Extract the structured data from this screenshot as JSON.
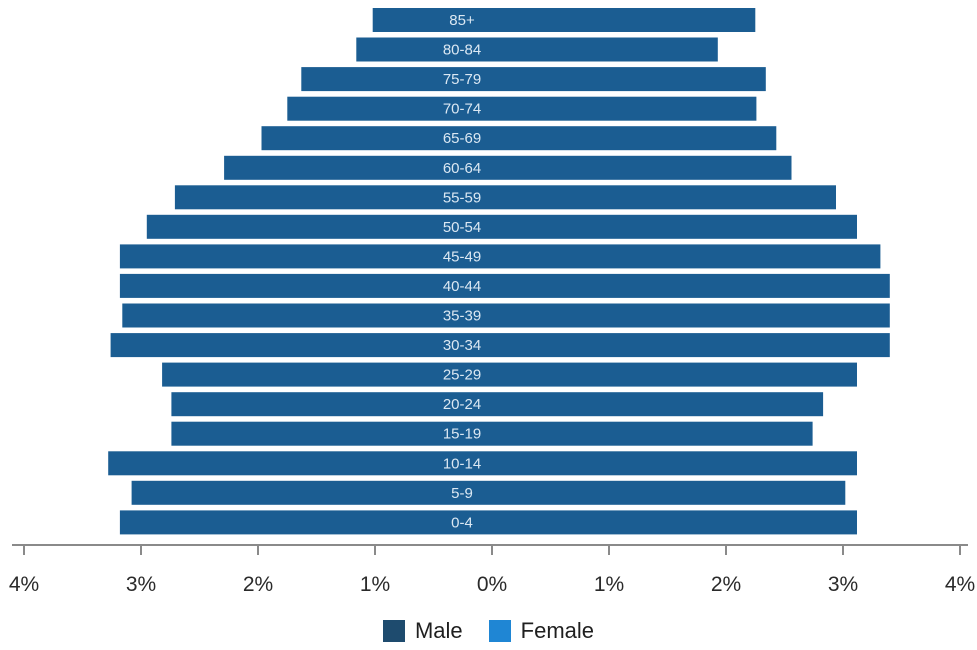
{
  "chart_data": {
    "type": "bar",
    "title": "",
    "xlabel": "",
    "ylabel": "",
    "xlim": [
      -4,
      4
    ],
    "x_ticks": [
      {
        "value": -4,
        "label": "4%"
      },
      {
        "value": -3,
        "label": "3%"
      },
      {
        "value": -2,
        "label": "2%"
      },
      {
        "value": -1,
        "label": "1%"
      },
      {
        "value": 0,
        "label": "0%"
      },
      {
        "value": 1,
        "label": "1%"
      },
      {
        "value": 2,
        "label": "2%"
      },
      {
        "value": 3,
        "label": "3%"
      },
      {
        "value": 4,
        "label": "4%"
      }
    ],
    "categories": [
      "85+",
      "80-84",
      "75-79",
      "70-74",
      "65-69",
      "60-64",
      "55-59",
      "50-54",
      "45-49",
      "40-44",
      "35-39",
      "30-34",
      "25-29",
      "20-24",
      "15-19",
      "10-14",
      "5-9",
      "0-4"
    ],
    "series": [
      {
        "name": "Male",
        "color": "#1b5d92",
        "values": [
          1.02,
          1.16,
          1.63,
          1.75,
          1.97,
          2.29,
          2.71,
          2.95,
          3.18,
          3.18,
          3.16,
          3.26,
          2.82,
          2.74,
          2.74,
          3.28,
          3.08,
          3.18
        ]
      },
      {
        "name": "Female",
        "color": "#1b5d92",
        "values": [
          2.25,
          1.93,
          2.34,
          2.26,
          2.43,
          2.56,
          2.94,
          3.12,
          3.32,
          3.4,
          3.4,
          3.4,
          3.12,
          2.83,
          2.74,
          3.12,
          3.02,
          3.12
        ]
      }
    ],
    "legend": {
      "position": "bottom-center",
      "entries": [
        {
          "label": "Male",
          "color": "#1e4b6e"
        },
        {
          "label": "Female",
          "color": "#1f86d4"
        }
      ]
    },
    "grid": false
  }
}
